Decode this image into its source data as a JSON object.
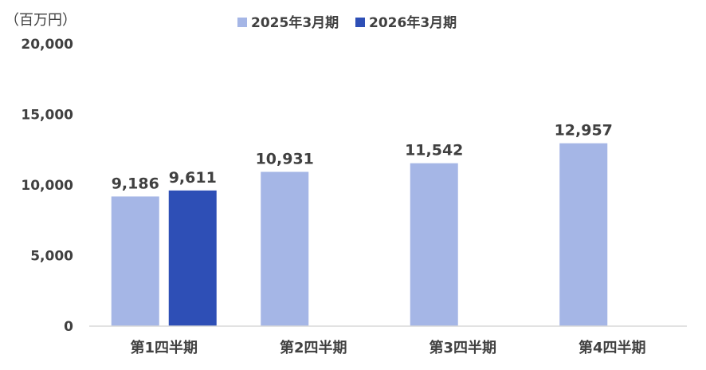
{
  "chart_data": {
    "type": "bar",
    "unit_label": "（百万円）",
    "categories": [
      "第1四半期",
      "第2四半期",
      "第3四半期",
      "第4四半期"
    ],
    "series": [
      {
        "name": "2025年3月期",
        "color": "#a5b6e6",
        "values": [
          9186,
          10931,
          11542,
          12957
        ]
      },
      {
        "name": "2026年3月期",
        "color": "#2e4fb6",
        "values": [
          9611,
          null,
          null,
          null
        ]
      }
    ],
    "data_labels": [
      [
        "9,186",
        "10,931",
        "11,542",
        "12,957"
      ],
      [
        "9,611",
        null,
        null,
        null
      ]
    ],
    "y_ticks": [
      "0",
      "5,000",
      "10,000",
      "15,000",
      "20,000"
    ],
    "ylim": [
      0,
      20000
    ],
    "legend_position": "top",
    "grid": false
  }
}
